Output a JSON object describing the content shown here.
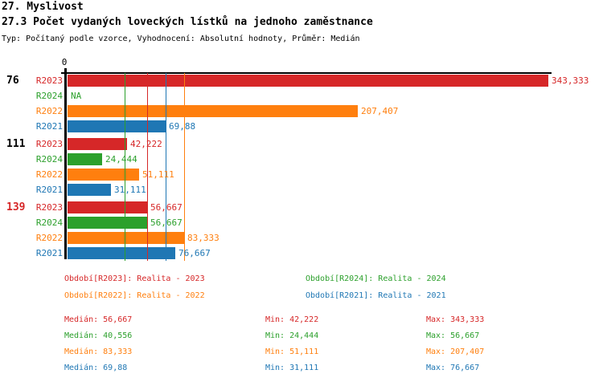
{
  "page": {
    "title1": "27. Myslivost",
    "title2": "27.3 Počet vydaných loveckých lístků na jednoho zaměstnance",
    "subtitle": "Typ: Počítaný podle vzorce, Vyhodnocení: Absolutní hodnoty, Průměr: Medián"
  },
  "colors": {
    "R2023": "#d62728",
    "R2024": "#2ca02c",
    "R2022": "#ff7f0e",
    "R2021": "#1f77b4",
    "axis": "#000000"
  },
  "chart_data": {
    "type": "bar",
    "orientation": "horizontal",
    "title": "27.3 Počet vydaných loveckých lístků na jednoho zaměstnance",
    "x_axis": {
      "zero_label": "0",
      "range": [
        0,
        350
      ],
      "grid": "median-lines-only"
    },
    "series_order": [
      "R2023",
      "R2024",
      "R2022",
      "R2021"
    ],
    "groups": [
      {
        "label": "76",
        "label_color": "#000000",
        "bars": [
          {
            "series": "R2023",
            "value": 343.333,
            "display": "343,333"
          },
          {
            "series": "R2024",
            "value": null,
            "display": "NA"
          },
          {
            "series": "R2022",
            "value": 207.407,
            "display": "207,407"
          },
          {
            "series": "R2021",
            "value": 69.88,
            "display": "69,88"
          }
        ]
      },
      {
        "label": "111",
        "label_color": "#000000",
        "bars": [
          {
            "series": "R2023",
            "value": 42.222,
            "display": "42,222"
          },
          {
            "series": "R2024",
            "value": 24.444,
            "display": "24,444"
          },
          {
            "series": "R2022",
            "value": 51.111,
            "display": "51,111"
          },
          {
            "series": "R2021",
            "value": 31.111,
            "display": "31,111"
          }
        ]
      },
      {
        "label": "139",
        "label_color": "#d62728",
        "bars": [
          {
            "series": "R2023",
            "value": 56.667,
            "display": "56,667"
          },
          {
            "series": "R2024",
            "value": 56.667,
            "display": "56,667"
          },
          {
            "series": "R2022",
            "value": 83.333,
            "display": "83,333"
          },
          {
            "series": "R2021",
            "value": 76.667,
            "display": "76,667"
          }
        ]
      }
    ],
    "median_lines": [
      {
        "series": "R2024",
        "value": 40.556
      },
      {
        "series": "R2023",
        "value": 56.667
      },
      {
        "series": "R2021",
        "value": 69.88
      },
      {
        "series": "R2022",
        "value": 83.333
      }
    ],
    "legend": [
      {
        "series": "R2023",
        "label": "Období[R2023]: Realita - 2023"
      },
      {
        "series": "R2024",
        "label": "Období[R2024]: Realita - 2024"
      },
      {
        "series": "R2022",
        "label": "Období[R2022]: Realita - 2022"
      },
      {
        "series": "R2021",
        "label": "Období[R2021]: Realita - 2021"
      }
    ],
    "stats": [
      {
        "series": "R2023",
        "median": 56.667,
        "min": 42.222,
        "max": 343.333,
        "median_text": "Medián: 56,667",
        "min_text": "Min: 42,222",
        "max_text": "Max: 343,333"
      },
      {
        "series": "R2024",
        "median": 40.556,
        "min": 24.444,
        "max": 56.667,
        "median_text": "Medián: 40,556",
        "min_text": "Min: 24,444",
        "max_text": "Max: 56,667"
      },
      {
        "series": "R2022",
        "median": 83.333,
        "min": 51.111,
        "max": 207.407,
        "median_text": "Medián: 83,333",
        "min_text": "Min: 51,111",
        "max_text": "Max: 207,407"
      },
      {
        "series": "R2021",
        "median": 69.88,
        "min": 31.111,
        "max": 76.667,
        "median_text": "Medián: 69,88",
        "min_text": "Min: 31,111",
        "max_text": "Max: 76,667"
      }
    ]
  }
}
